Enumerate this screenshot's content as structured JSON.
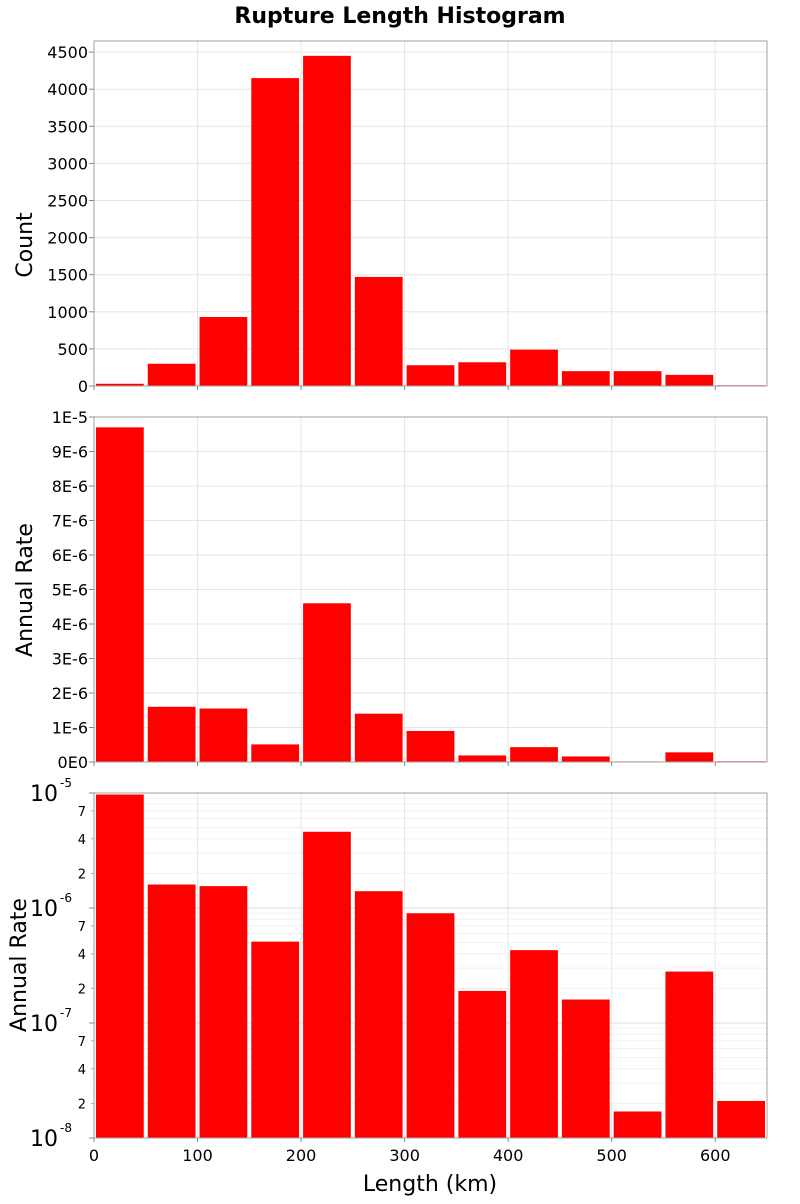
{
  "chart_data": {
    "type": "bar",
    "title": "Rupture Length Histogram",
    "xlabel": "Length (km)",
    "xlim": [
      0,
      650
    ],
    "x_ticks": [
      "0",
      "100",
      "200",
      "300",
      "400",
      "500",
      "600"
    ],
    "x_tick_values": [
      0,
      100,
      200,
      300,
      400,
      500,
      600
    ],
    "bin_width": 50,
    "bin_centers": [
      25,
      75,
      125,
      175,
      225,
      275,
      325,
      375,
      425,
      475,
      525,
      575,
      625
    ],
    "bar_color": "#ff0000",
    "grid": true,
    "panels": [
      {
        "ylabel": "Count",
        "scale": "linear",
        "ylim": [
          0,
          4650
        ],
        "y_ticks": [
          "0",
          "500",
          "1000",
          "1500",
          "2000",
          "2500",
          "3000",
          "3500",
          "4000",
          "4500"
        ],
        "y_tick_values": [
          0,
          500,
          1000,
          1500,
          2000,
          2500,
          3000,
          3500,
          4000,
          4500
        ],
        "values": [
          30,
          300,
          930,
          4150,
          4450,
          1470,
          280,
          320,
          490,
          200,
          200,
          150,
          10
        ]
      },
      {
        "ylabel": "Annual Rate",
        "scale": "linear",
        "ylim": [
          0,
          1e-05
        ],
        "y_ticks": [
          "0E0",
          "1E-6",
          "2E-6",
          "3E-6",
          "4E-6",
          "5E-6",
          "6E-6",
          "7E-6",
          "8E-6",
          "9E-6",
          "1E-5"
        ],
        "y_tick_values": [
          0,
          1e-06,
          2e-06,
          3e-06,
          4e-06,
          5e-06,
          6e-06,
          7e-06,
          8e-06,
          9e-06,
          1e-05
        ],
        "values": [
          9.7e-06,
          1.6e-06,
          1.55e-06,
          5.1e-07,
          4.6e-06,
          1.4e-06,
          9e-07,
          1.9e-07,
          4.3e-07,
          1.6e-07,
          1.7e-08,
          2.8e-07,
          2.1e-08
        ]
      },
      {
        "ylabel": "Annual Rate",
        "scale": "log",
        "ylim": [
          1e-08,
          1e-05
        ],
        "y_major": [
          {
            "value": 1e-05,
            "base": "10",
            "exp": "-5"
          },
          {
            "value": 1e-06,
            "base": "10",
            "exp": "-6"
          },
          {
            "value": 1e-07,
            "base": "10",
            "exp": "-7"
          },
          {
            "value": 1e-08,
            "base": "10",
            "exp": "-8"
          }
        ],
        "y_minor_labeled": [
          {
            "value": 7e-06,
            "label": "7"
          },
          {
            "value": 4e-06,
            "label": "4"
          },
          {
            "value": 2e-06,
            "label": "2"
          },
          {
            "value": 7e-07,
            "label": "7"
          },
          {
            "value": 4e-07,
            "label": "4"
          },
          {
            "value": 2e-07,
            "label": "2"
          },
          {
            "value": 7e-08,
            "label": "7"
          },
          {
            "value": 4e-08,
            "label": "4"
          },
          {
            "value": 2e-08,
            "label": "2"
          }
        ],
        "values": [
          9.7e-06,
          1.6e-06,
          1.55e-06,
          5.1e-07,
          4.6e-06,
          1.4e-06,
          9e-07,
          1.9e-07,
          4.3e-07,
          1.6e-07,
          1.7e-08,
          2.8e-07,
          2.1e-08
        ]
      }
    ]
  }
}
